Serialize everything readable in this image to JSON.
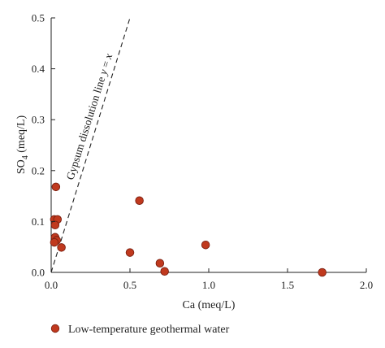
{
  "chart_data": {
    "type": "scatter",
    "title": "",
    "xlabel": "Ca (meq/L)",
    "ylabel_main": "SO",
    "ylabel_sub": "4",
    "ylabel_rest": " (meq/L)",
    "xlim": [
      0,
      2.0
    ],
    "ylim": [
      0,
      0.5
    ],
    "x_ticks": [
      "0.0",
      "0.5",
      "1.0",
      "1.5",
      "2.0"
    ],
    "y_ticks": [
      "0.0",
      "0.1",
      "0.2",
      "0.3",
      "0.4",
      "0.5"
    ],
    "x_tick_values": [
      0,
      0.5,
      1.0,
      1.5,
      2.0
    ],
    "y_tick_values": [
      0,
      0.1,
      0.2,
      0.3,
      0.4,
      0.5
    ],
    "grid": false,
    "legend_position": "bottom-left",
    "series": [
      {
        "name": "Low-temperature geothermal water",
        "color": "#c0391e",
        "edge_color": "#7a1f10",
        "points": [
          {
            "x": 0.03,
            "y": 0.168
          },
          {
            "x": 0.02,
            "y": 0.104
          },
          {
            "x": 0.04,
            "y": 0.104
          },
          {
            "x": 0.025,
            "y": 0.093
          },
          {
            "x": 0.025,
            "y": 0.069
          },
          {
            "x": 0.035,
            "y": 0.063
          },
          {
            "x": 0.02,
            "y": 0.059
          },
          {
            "x": 0.065,
            "y": 0.049
          },
          {
            "x": 0.56,
            "y": 0.141
          },
          {
            "x": 0.5,
            "y": 0.039
          },
          {
            "x": 0.69,
            "y": 0.018
          },
          {
            "x": 0.72,
            "y": 0.002
          },
          {
            "x": 0.98,
            "y": 0.054
          },
          {
            "x": 1.72,
            "y": 0.0
          }
        ]
      }
    ],
    "reference_line": {
      "label": "Gypsum dissolution line y = x",
      "label_main": "Gypsum dissolution line ",
      "label_y": "y",
      "label_eq": " = ",
      "label_x": "x",
      "style": "dashed",
      "from": {
        "x": 0,
        "y": 0
      },
      "to": {
        "x": 0.5,
        "y": 0.5
      }
    }
  }
}
